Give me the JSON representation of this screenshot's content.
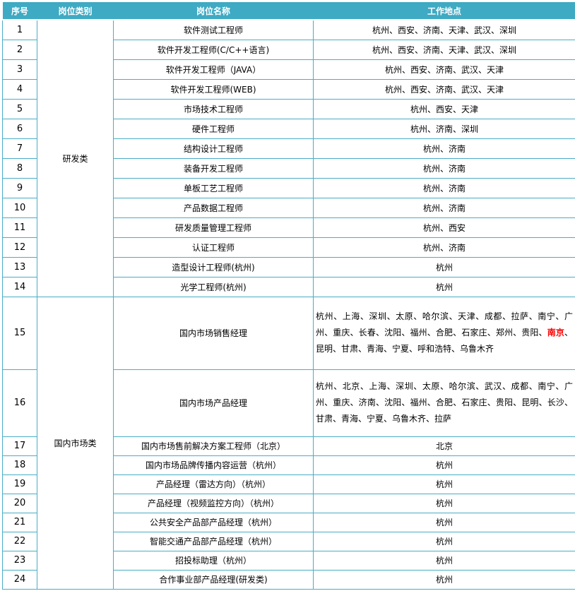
{
  "table": {
    "columns": [
      "序号",
      "岗位类别",
      "岗位名称",
      "工作地点"
    ],
    "categories": [
      {
        "label": "研发类",
        "rows": 14
      },
      {
        "label": "国内市场类",
        "rows": 10
      }
    ],
    "rows": [
      {
        "no": "1",
        "name": "软件测试工程师",
        "location": "杭州、西安、济南、天津、武汉、深圳"
      },
      {
        "no": "2",
        "name": "软件开发工程师(C/C++语言)",
        "location": "杭州、西安、济南、天津、武汉、深圳"
      },
      {
        "no": "3",
        "name": "软件开发工程师（JAVA）",
        "location": "杭州、西安、济南、武汉、天津"
      },
      {
        "no": "4",
        "name": "软件开发工程师(WEB)",
        "location": "杭州、西安、济南、武汉、天津"
      },
      {
        "no": "5",
        "name": "市场技术工程师",
        "location": "杭州、西安、天津"
      },
      {
        "no": "6",
        "name": "硬件工程师",
        "location": "杭州、济南、深圳"
      },
      {
        "no": "7",
        "name": "结构设计工程师",
        "location": "杭州、济南"
      },
      {
        "no": "8",
        "name": "装备开发工程师",
        "location": "杭州、济南"
      },
      {
        "no": "9",
        "name": "单板工艺工程师",
        "location": "杭州、济南"
      },
      {
        "no": "10",
        "name": "产品数据工程师",
        "location": "杭州、济南"
      },
      {
        "no": "11",
        "name": "研发质量管理工程师",
        "location": "杭州、西安"
      },
      {
        "no": "12",
        "name": "认证工程师",
        "location": "杭州、济南"
      },
      {
        "no": "13",
        "name": "造型设计工程师(杭州)",
        "location": "杭州"
      },
      {
        "no": "14",
        "name": "光学工程师(杭州)",
        "location": "杭州"
      },
      {
        "no": "15",
        "name": "国内市场销售经理",
        "location_before": "杭州、上海、深圳、太原、哈尔滨、天津、成都、拉萨、南宁、广州、重庆、长春、沈阳、福州、合肥、石家庄、郑州、贵阳、",
        "location_highlight": "南京",
        "location_after": "、昆明、甘肃、青海、宁夏、呼和浩特、乌鲁木齐"
      },
      {
        "no": "16",
        "name": "国内市场产品经理",
        "location": "杭州、北京、上海、深圳、太原、哈尔滨、武汉、成都、南宁、广州、重庆、济南、沈阳、福州、合肥、石家庄、贵阳、昆明、长沙、甘肃、青海、宁夏、乌鲁木齐、拉萨"
      },
      {
        "no": "17",
        "name": "国内市场售前解决方案工程师（北京）",
        "location": "北京"
      },
      {
        "no": "18",
        "name": "国内市场品牌传播内容运营（杭州）",
        "location": "杭州"
      },
      {
        "no": "19",
        "name": "产品经理（雷达方向）（杭州）",
        "location": "杭州"
      },
      {
        "no": "20",
        "name": "产品经理（视频监控方向）（杭州）",
        "location": "杭州"
      },
      {
        "no": "21",
        "name": "公共安全产品部产品经理（杭州）",
        "location": "杭州"
      },
      {
        "no": "22",
        "name": "智能交通产品部产品经理（杭州）",
        "location": "杭州"
      },
      {
        "no": "23",
        "name": "招投标助理（杭州）",
        "location": "杭州"
      },
      {
        "no": "24",
        "name": "合作事业部产品经理(研发类)",
        "location": "杭州"
      }
    ]
  },
  "colors": {
    "header_bg": "#3FAAC3",
    "border": "#4BACC6",
    "header_text": "#FFFFFF",
    "body_text": "#000000",
    "highlight_text": "#FF0000"
  }
}
